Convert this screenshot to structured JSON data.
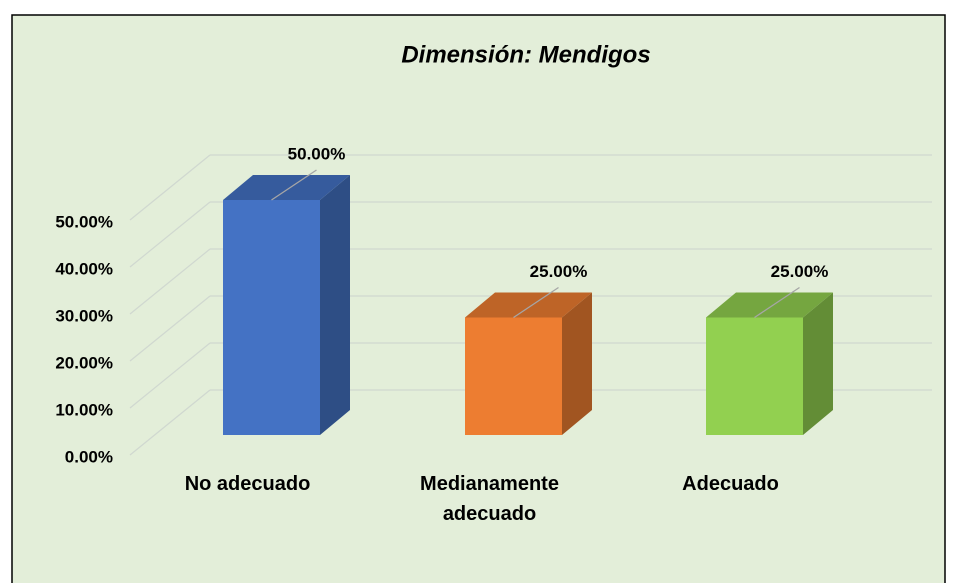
{
  "chart_data": {
    "type": "bar3d",
    "title": "Dimensión: Mendigos",
    "categories": [
      "No adecuado",
      "Medianamente adecuado",
      "Adecuado"
    ],
    "values": [
      50,
      25,
      25
    ],
    "value_labels": [
      "50.00%",
      "25.00%",
      "25.00%"
    ],
    "colors": [
      "#4472c4",
      "#ed7d31",
      "#92d050"
    ],
    "ylim": [
      0,
      50
    ],
    "yticks": [
      {
        "value": 0,
        "label": "0.00%"
      },
      {
        "value": 10,
        "label": "10.00%"
      },
      {
        "value": 20,
        "label": "20.00%"
      },
      {
        "value": 30,
        "label": "30.00%"
      },
      {
        "value": 40,
        "label": "40.00%"
      },
      {
        "value": 50,
        "label": "50.00%"
      }
    ],
    "grid": true
  }
}
